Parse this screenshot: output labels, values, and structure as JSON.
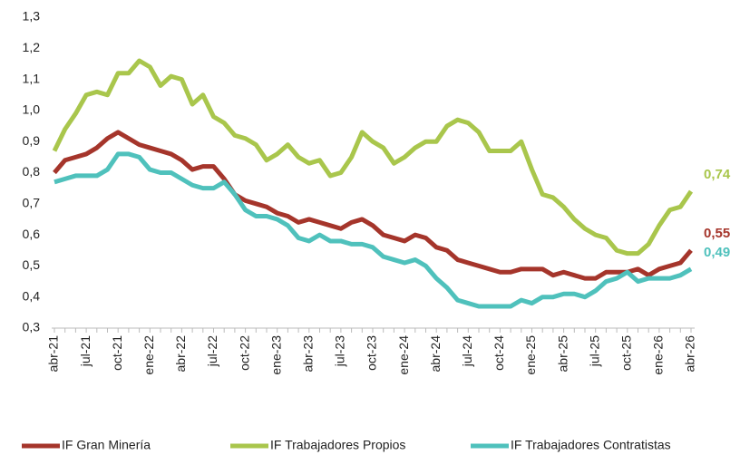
{
  "chart_data": {
    "type": "line",
    "categories": [
      "abr-21",
      null,
      null,
      "jul-21",
      null,
      null,
      "oct-21",
      null,
      null,
      "ene-22",
      null,
      null,
      "abr-22",
      null,
      null,
      "jul-22",
      null,
      null,
      "oct-22",
      null,
      null,
      "ene-23",
      null,
      null,
      "abr-23",
      null,
      null,
      "jul-23",
      null,
      null,
      "oct-23",
      null,
      null,
      "ene-24",
      null,
      null,
      "abr-24",
      null,
      null,
      "jul-24",
      null,
      null,
      "oct-24",
      null,
      null,
      "ene-25",
      null,
      null,
      "abr-25",
      null,
      null,
      "jul-25",
      null,
      null,
      "oct-25",
      null,
      null,
      "ene-26",
      null,
      null,
      "abr-26"
    ],
    "series": [
      {
        "name": "IF Gran Minería",
        "color": "#a5352b",
        "values": [
          0.8,
          0.84,
          0.85,
          0.86,
          0.88,
          0.91,
          0.93,
          0.91,
          0.89,
          0.88,
          0.87,
          0.86,
          0.84,
          0.81,
          0.82,
          0.82,
          0.78,
          0.73,
          0.71,
          0.7,
          0.69,
          0.67,
          0.66,
          0.64,
          0.65,
          0.64,
          0.63,
          0.62,
          0.64,
          0.65,
          0.63,
          0.6,
          0.59,
          0.58,
          0.6,
          0.59,
          0.56,
          0.55,
          0.52,
          0.51,
          0.5,
          0.49,
          0.48,
          0.48,
          0.49,
          0.49,
          0.49,
          0.47,
          0.48,
          0.47,
          0.46,
          0.46,
          0.48,
          0.48,
          0.48,
          0.49,
          0.47,
          0.49,
          0.5,
          0.51,
          0.55
        ],
        "value_labels": [
          null,
          null,
          null,
          null,
          null,
          null,
          null,
          null,
          null,
          null,
          null,
          null,
          null,
          null,
          null,
          null,
          null,
          null,
          null,
          null,
          null,
          null,
          null,
          null,
          null,
          null,
          null,
          null,
          null,
          null,
          null,
          null,
          null,
          null,
          null,
          null,
          null,
          null,
          null,
          null,
          null,
          null,
          null,
          null,
          null,
          null,
          null,
          null,
          null,
          null,
          null,
          null,
          null,
          null,
          null,
          null,
          null,
          null,
          null,
          null,
          "0,55"
        ]
      },
      {
        "name": "IF Trabajadores Propios",
        "color": "#a9c64c",
        "values": [
          0.87,
          0.94,
          0.99,
          1.05,
          1.06,
          1.05,
          1.12,
          1.12,
          1.16,
          1.14,
          1.08,
          1.11,
          1.1,
          1.02,
          1.05,
          0.98,
          0.96,
          0.92,
          0.91,
          0.89,
          0.84,
          0.86,
          0.89,
          0.85,
          0.83,
          0.84,
          0.79,
          0.8,
          0.85,
          0.93,
          0.9,
          0.88,
          0.83,
          0.85,
          0.88,
          0.9,
          0.9,
          0.95,
          0.97,
          0.96,
          0.93,
          0.87,
          0.87,
          0.87,
          0.9,
          0.81,
          0.73,
          0.72,
          0.69,
          0.65,
          0.62,
          0.6,
          0.59,
          0.55,
          0.54,
          0.54,
          0.57,
          0.63,
          0.68,
          0.69,
          0.74
        ],
        "value_labels": [
          null,
          null,
          null,
          null,
          null,
          null,
          null,
          null,
          null,
          null,
          null,
          null,
          null,
          null,
          null,
          null,
          null,
          null,
          null,
          null,
          null,
          null,
          null,
          null,
          null,
          null,
          null,
          null,
          null,
          null,
          null,
          null,
          null,
          null,
          null,
          null,
          null,
          null,
          null,
          null,
          null,
          null,
          null,
          null,
          null,
          null,
          null,
          null,
          null,
          null,
          null,
          null,
          null,
          null,
          null,
          null,
          null,
          null,
          null,
          null,
          "0,74"
        ]
      },
      {
        "name": "IF Trabajadores Contratistas",
        "color": "#4fc1bc",
        "values": [
          0.77,
          0.78,
          0.79,
          0.79,
          0.79,
          0.81,
          0.86,
          0.86,
          0.85,
          0.81,
          0.8,
          0.8,
          0.78,
          0.76,
          0.75,
          0.75,
          0.77,
          0.73,
          0.68,
          0.66,
          0.66,
          0.65,
          0.63,
          0.59,
          0.58,
          0.6,
          0.58,
          0.58,
          0.57,
          0.57,
          0.56,
          0.53,
          0.52,
          0.51,
          0.52,
          0.5,
          0.46,
          0.43,
          0.39,
          0.38,
          0.37,
          0.37,
          0.37,
          0.37,
          0.39,
          0.38,
          0.4,
          0.4,
          0.41,
          0.41,
          0.4,
          0.42,
          0.45,
          0.46,
          0.48,
          0.45,
          0.46,
          0.46,
          0.46,
          0.47,
          0.49
        ],
        "value_labels": [
          null,
          null,
          null,
          null,
          null,
          null,
          null,
          null,
          null,
          null,
          null,
          null,
          null,
          null,
          null,
          null,
          null,
          null,
          null,
          null,
          null,
          null,
          null,
          null,
          null,
          null,
          null,
          null,
          null,
          null,
          null,
          null,
          null,
          null,
          null,
          null,
          null,
          null,
          null,
          null,
          null,
          null,
          null,
          null,
          null,
          null,
          null,
          null,
          null,
          null,
          null,
          null,
          null,
          null,
          null,
          null,
          null,
          null,
          null,
          null,
          "0,49"
        ]
      }
    ],
    "ylim": [
      0.3,
      1.3
    ],
    "yticks": [
      {
        "value": 0.3,
        "label": "0,3"
      },
      {
        "value": 0.4,
        "label": "0,4"
      },
      {
        "value": 0.5,
        "label": "0,5"
      },
      {
        "value": 0.6,
        "label": "0,6"
      },
      {
        "value": 0.7,
        "label": "0,7"
      },
      {
        "value": 0.8,
        "label": "0,8"
      },
      {
        "value": 0.9,
        "label": "0,9"
      },
      {
        "value": 1.0,
        "label": "1,0"
      },
      {
        "value": 1.1,
        "label": "1,1"
      },
      {
        "value": 1.2,
        "label": "1,2"
      },
      {
        "value": 1.3,
        "label": "1,3"
      }
    ],
    "grid": false,
    "legend": "bottom"
  }
}
